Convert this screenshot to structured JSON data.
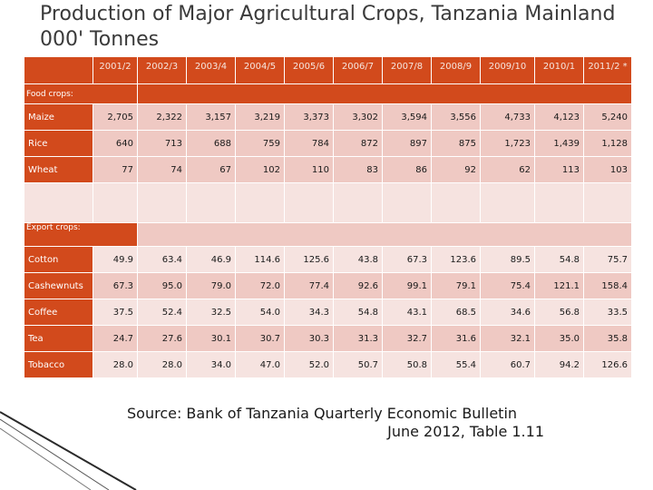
{
  "title": "Production of Major Agricultural Crops, Tanzania Mainland  000' Tonnes",
  "columns": [
    "2001/2",
    "2002/3",
    "2003/4",
    "2004/5",
    "2005/6",
    "2006/7",
    "2007/8",
    "2008/9",
    "2009/10",
    "2010/1",
    "2011/2 *"
  ],
  "sections": {
    "food": "Food crops:",
    "export": "Export  crops:"
  },
  "food_rows": [
    {
      "label": "Maize",
      "values": [
        "2,705",
        "2,322",
        "3,157",
        "3,219",
        "3,373",
        "3,302",
        "3,594",
        "3,556",
        "4,733",
        "4,123",
        "5,240"
      ]
    },
    {
      "label": "Rice",
      "values": [
        "640",
        "713",
        "688",
        "759",
        "784",
        "872",
        "897",
        "875",
        "1,723",
        "1,439",
        "1,128"
      ]
    },
    {
      "label": "Wheat",
      "values": [
        "77",
        "74",
        "67",
        "102",
        "110",
        "83",
        "86",
        "92",
        "62",
        "113",
        "103"
      ]
    }
  ],
  "export_rows": [
    {
      "label": "Cotton",
      "values": [
        "49.9",
        "63.4",
        "46.9",
        "114.6",
        "125.6",
        "43.8",
        "67.3",
        "123.6",
        "89.5",
        "54.8",
        "75.7"
      ]
    },
    {
      "label": "Cashewnuts",
      "values": [
        "67.3",
        "95.0",
        "79.0",
        "72.0",
        "77.4",
        "92.6",
        "99.1",
        "79.1",
        "75.4",
        "121.1",
        "158.4"
      ]
    },
    {
      "label": "Coffee",
      "values": [
        "37.5",
        "52.4",
        "32.5",
        "54.0",
        "34.3",
        "54.8",
        "43.1",
        "68.5",
        "34.6",
        "56.8",
        "33.5"
      ]
    },
    {
      "label": "Tea",
      "values": [
        "24.7",
        "27.6",
        "30.1",
        "30.7",
        "30.3",
        "31.3",
        "32.7",
        "31.6",
        "32.1",
        "35.0",
        "35.8"
      ]
    },
    {
      "label": "Tobacco",
      "values": [
        "28.0",
        "28.0",
        "34.0",
        "47.0",
        "52.0",
        "50.7",
        "50.8",
        "55.4",
        "60.7",
        "94.2",
        "126.6"
      ]
    }
  ],
  "source": {
    "line1": "Source: Bank of Tanzania Quarterly Economic Bulletin",
    "line2": "June 2012, Table 1.11"
  },
  "colors": {
    "accent": "#d24a1c",
    "cell_dark": "#efc9c3",
    "cell_light": "#f6e3e0"
  }
}
